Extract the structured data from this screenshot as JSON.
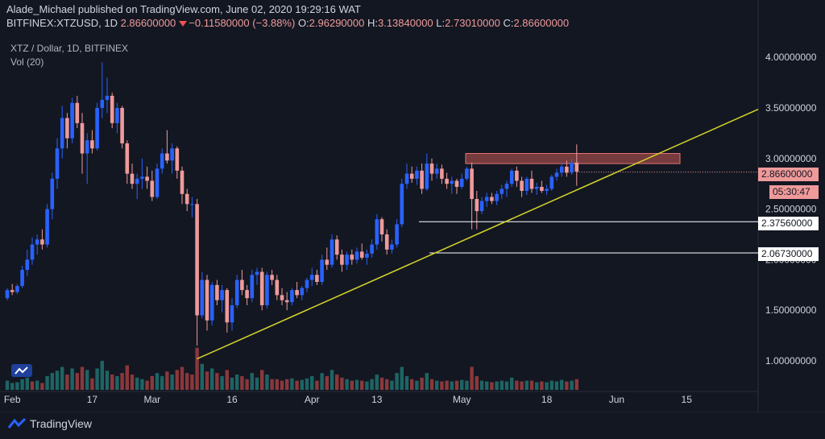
{
  "header": {
    "published_line": "Alade_Michael published on TradingView.com, June 02, 2020 19:29:16 WAT",
    "symbol": "BITFINEX:XTZUSD, 1D",
    "last": "2.86600000",
    "change": "−0.11580000 (−3.88%)",
    "o_label": "O:",
    "o": "2.96290000",
    "h_label": "H:",
    "h": "3.13840000",
    "l_label": "L:",
    "l": "2.73010000",
    "c_label": "C:",
    "c": "2.86600000"
  },
  "legend": {
    "title": "XTZ / Dollar, 1D, BITFINEX",
    "volume": "Vol (20)"
  },
  "price_axis": {
    "labels": [
      "4.00000000",
      "3.50000000",
      "3.00000000",
      "2.50000000",
      "2.00000000",
      "1.50000000",
      "1.00000000"
    ],
    "current_price": "2.86600000",
    "countdown": "05:30:47",
    "level_1": "2.37560000",
    "level_2": "2.06730000"
  },
  "time_axis": {
    "labels": [
      "Feb",
      "17",
      "Mar",
      "16",
      "Apr",
      "13",
      "May",
      "18",
      "Jun",
      "15"
    ]
  },
  "footer": {
    "brand": "TradingView"
  },
  "colors": {
    "background": "#131722",
    "up": "#2962ff",
    "down": "#ef9a9a",
    "trendline": "#d4d42a",
    "resistance_zone": "#b85450",
    "vol_up": "#26a69a",
    "vol_down": "#ef5350"
  },
  "chart_data": {
    "type": "candlestick",
    "title": "XTZ / Dollar, 1D, BITFINEX",
    "ylim": [
      0.75,
      4.2
    ],
    "y_ticks": [
      1.0,
      1.5,
      2.0,
      2.5,
      3.0,
      3.5,
      4.0
    ],
    "x_ticks": [
      "Feb",
      "17",
      "Mar",
      "16",
      "Apr",
      "13",
      "May",
      "18",
      "Jun",
      "15"
    ],
    "start_date": "2020-01-31",
    "candles": [
      [
        1.62,
        1.72,
        1.6,
        1.7
      ],
      [
        1.7,
        1.76,
        1.65,
        1.68
      ],
      [
        1.68,
        1.76,
        1.66,
        1.74
      ],
      [
        1.74,
        1.94,
        1.72,
        1.9
      ],
      [
        1.9,
        2.1,
        1.84,
        2.0
      ],
      [
        2.0,
        2.22,
        1.95,
        2.15
      ],
      [
        2.15,
        2.25,
        2.05,
        2.2
      ],
      [
        2.2,
        2.3,
        2.1,
        2.15
      ],
      [
        2.15,
        2.55,
        2.12,
        2.5
      ],
      [
        2.5,
        2.86,
        2.4,
        2.8
      ],
      [
        2.8,
        3.2,
        2.7,
        3.1
      ],
      [
        3.1,
        3.52,
        3.0,
        3.4
      ],
      [
        3.4,
        3.45,
        3.1,
        3.2
      ],
      [
        3.2,
        3.6,
        3.15,
        3.55
      ],
      [
        3.55,
        3.62,
        3.3,
        3.35
      ],
      [
        3.35,
        3.45,
        2.85,
        3.05
      ],
      [
        3.05,
        3.25,
        2.75,
        3.18
      ],
      [
        3.18,
        3.28,
        3.05,
        3.1
      ],
      [
        3.1,
        3.55,
        3.08,
        3.5
      ],
      [
        3.5,
        3.95,
        3.4,
        3.58
      ],
      [
        3.58,
        3.8,
        3.45,
        3.62
      ],
      [
        3.62,
        3.65,
        3.3,
        3.35
      ],
      [
        3.35,
        3.55,
        3.25,
        3.5
      ],
      [
        3.5,
        3.52,
        3.1,
        3.15
      ],
      [
        3.15,
        3.18,
        2.75,
        2.85
      ],
      [
        2.85,
        2.95,
        2.7,
        2.75
      ],
      [
        2.75,
        2.85,
        2.6,
        2.8
      ],
      [
        2.8,
        3.0,
        2.7,
        2.82
      ],
      [
        2.82,
        2.92,
        2.7,
        2.78
      ],
      [
        2.78,
        2.88,
        2.58,
        2.62
      ],
      [
        2.62,
        2.95,
        2.6,
        2.9
      ],
      [
        2.9,
        3.1,
        2.85,
        3.05
      ],
      [
        3.05,
        3.28,
        2.95,
        2.98
      ],
      [
        2.98,
        3.15,
        2.85,
        3.1
      ],
      [
        3.1,
        3.12,
        2.8,
        2.88
      ],
      [
        2.88,
        2.92,
        2.55,
        2.65
      ],
      [
        2.65,
        2.7,
        2.48,
        2.55
      ],
      [
        2.55,
        2.62,
        2.42,
        2.55
      ],
      [
        2.55,
        2.6,
        1.15,
        1.45
      ],
      [
        1.45,
        1.88,
        1.42,
        1.8
      ],
      [
        1.8,
        1.85,
        1.3,
        1.4
      ],
      [
        1.4,
        1.78,
        1.35,
        1.75
      ],
      [
        1.75,
        1.8,
        1.55,
        1.6
      ],
      [
        1.6,
        1.75,
        1.48,
        1.7
      ],
      [
        1.7,
        1.72,
        1.28,
        1.38
      ],
      [
        1.38,
        1.62,
        1.3,
        1.55
      ],
      [
        1.55,
        1.85,
        1.52,
        1.8
      ],
      [
        1.8,
        1.9,
        1.65,
        1.7
      ],
      [
        1.7,
        1.75,
        1.55,
        1.62
      ],
      [
        1.62,
        1.9,
        1.58,
        1.85
      ],
      [
        1.85,
        1.92,
        1.75,
        1.88
      ],
      [
        1.88,
        1.92,
        1.5,
        1.55
      ],
      [
        1.55,
        1.88,
        1.52,
        1.85
      ],
      [
        1.85,
        1.9,
        1.75,
        1.8
      ],
      [
        1.8,
        1.85,
        1.6,
        1.65
      ],
      [
        1.65,
        1.72,
        1.55,
        1.6
      ],
      [
        1.6,
        1.68,
        1.5,
        1.58
      ],
      [
        1.58,
        1.72,
        1.55,
        1.7
      ],
      [
        1.7,
        1.78,
        1.62,
        1.65
      ],
      [
        1.65,
        1.74,
        1.6,
        1.72
      ],
      [
        1.72,
        1.82,
        1.68,
        1.8
      ],
      [
        1.8,
        1.92,
        1.74,
        1.85
      ],
      [
        1.85,
        1.9,
        1.75,
        1.78
      ],
      [
        1.78,
        2.05,
        1.75,
        2.0
      ],
      [
        2.0,
        2.12,
        1.9,
        1.95
      ],
      [
        1.95,
        2.25,
        1.92,
        2.2
      ],
      [
        2.2,
        2.24,
        2.0,
        2.05
      ],
      [
        2.05,
        2.1,
        1.88,
        1.95
      ],
      [
        1.95,
        2.08,
        1.9,
        2.05
      ],
      [
        2.05,
        2.1,
        1.95,
        2.0
      ],
      [
        2.0,
        2.12,
        1.96,
        2.08
      ],
      [
        2.08,
        2.16,
        2.0,
        2.02
      ],
      [
        2.02,
        2.1,
        1.95,
        2.06
      ],
      [
        2.06,
        2.2,
        2.02,
        2.15
      ],
      [
        2.15,
        2.45,
        2.1,
        2.4
      ],
      [
        2.4,
        2.42,
        2.18,
        2.25
      ],
      [
        2.25,
        2.3,
        2.05,
        2.1
      ],
      [
        2.1,
        2.2,
        2.06,
        2.15
      ],
      [
        2.15,
        2.4,
        2.12,
        2.35
      ],
      [
        2.35,
        2.8,
        2.32,
        2.75
      ],
      [
        2.75,
        2.95,
        2.7,
        2.85
      ],
      [
        2.85,
        2.92,
        2.76,
        2.8
      ],
      [
        2.8,
        2.92,
        2.74,
        2.88
      ],
      [
        2.88,
        2.95,
        2.65,
        2.7
      ],
      [
        2.7,
        3.05,
        2.68,
        2.95
      ],
      [
        2.95,
        3.0,
        2.78,
        2.85
      ],
      [
        2.85,
        2.95,
        2.8,
        2.9
      ],
      [
        2.9,
        2.94,
        2.75,
        2.8
      ],
      [
        2.8,
        2.86,
        2.7,
        2.75
      ],
      [
        2.75,
        2.82,
        2.65,
        2.78
      ],
      [
        2.78,
        2.8,
        2.65,
        2.72
      ],
      [
        2.72,
        2.85,
        2.7,
        2.8
      ],
      [
        2.8,
        2.92,
        2.78,
        2.9
      ],
      [
        2.9,
        2.96,
        2.3,
        2.6
      ],
      [
        2.6,
        2.68,
        2.3,
        2.48
      ],
      [
        2.48,
        2.62,
        2.45,
        2.58
      ],
      [
        2.58,
        2.66,
        2.52,
        2.62
      ],
      [
        2.62,
        2.66,
        2.55,
        2.58
      ],
      [
        2.58,
        2.68,
        2.54,
        2.65
      ],
      [
        2.65,
        2.74,
        2.6,
        2.7
      ],
      [
        2.7,
        2.78,
        2.62,
        2.75
      ],
      [
        2.75,
        2.9,
        2.72,
        2.88
      ],
      [
        2.88,
        2.92,
        2.72,
        2.78
      ],
      [
        2.78,
        2.82,
        2.62,
        2.68
      ],
      [
        2.68,
        2.82,
        2.64,
        2.8
      ],
      [
        2.8,
        2.88,
        2.66,
        2.7
      ],
      [
        2.7,
        2.76,
        2.64,
        2.72
      ],
      [
        2.72,
        2.78,
        2.66,
        2.68
      ],
      [
        2.68,
        2.74,
        2.64,
        2.7
      ],
      [
        2.7,
        2.84,
        2.68,
        2.82
      ],
      [
        2.82,
        2.9,
        2.78,
        2.86
      ],
      [
        2.86,
        2.96,
        2.82,
        2.92
      ],
      [
        2.92,
        2.98,
        2.82,
        2.86
      ],
      [
        2.86,
        3.0,
        2.84,
        2.96
      ],
      [
        2.96,
        3.14,
        2.73,
        2.87
      ]
    ],
    "volume": [
      [
        12,
        1
      ],
      [
        9,
        1
      ],
      [
        10,
        1
      ],
      [
        14,
        1
      ],
      [
        16,
        1
      ],
      [
        11,
        0
      ],
      [
        12,
        1
      ],
      [
        9,
        0
      ],
      [
        18,
        1
      ],
      [
        22,
        1
      ],
      [
        25,
        1
      ],
      [
        30,
        1
      ],
      [
        20,
        0
      ],
      [
        28,
        1
      ],
      [
        22,
        0
      ],
      [
        30,
        0
      ],
      [
        26,
        1
      ],
      [
        15,
        0
      ],
      [
        28,
        1
      ],
      [
        38,
        1
      ],
      [
        25,
        1
      ],
      [
        20,
        0
      ],
      [
        18,
        1
      ],
      [
        22,
        0
      ],
      [
        32,
        0
      ],
      [
        20,
        0
      ],
      [
        16,
        1
      ],
      [
        14,
        1
      ],
      [
        12,
        0
      ],
      [
        18,
        0
      ],
      [
        22,
        1
      ],
      [
        18,
        1
      ],
      [
        24,
        0
      ],
      [
        20,
        1
      ],
      [
        26,
        0
      ],
      [
        30,
        0
      ],
      [
        22,
        0
      ],
      [
        20,
        0
      ],
      [
        55,
        0
      ],
      [
        34,
        1
      ],
      [
        24,
        0
      ],
      [
        28,
        1
      ],
      [
        22,
        0
      ],
      [
        18,
        1
      ],
      [
        26,
        0
      ],
      [
        16,
        1
      ],
      [
        20,
        1
      ],
      [
        18,
        0
      ],
      [
        14,
        0
      ],
      [
        22,
        1
      ],
      [
        16,
        1
      ],
      [
        26,
        0
      ],
      [
        20,
        1
      ],
      [
        14,
        0
      ],
      [
        14,
        0
      ],
      [
        12,
        0
      ],
      [
        14,
        0
      ],
      [
        15,
        1
      ],
      [
        12,
        0
      ],
      [
        13,
        1
      ],
      [
        15,
        1
      ],
      [
        18,
        1
      ],
      [
        12,
        0
      ],
      [
        22,
        1
      ],
      [
        18,
        0
      ],
      [
        26,
        1
      ],
      [
        20,
        0
      ],
      [
        16,
        0
      ],
      [
        14,
        1
      ],
      [
        12,
        0
      ],
      [
        13,
        1
      ],
      [
        12,
        0
      ],
      [
        11,
        1
      ],
      [
        14,
        1
      ],
      [
        20,
        1
      ],
      [
        16,
        0
      ],
      [
        14,
        0
      ],
      [
        12,
        1
      ],
      [
        22,
        1
      ],
      [
        30,
        1
      ],
      [
        18,
        1
      ],
      [
        14,
        0
      ],
      [
        12,
        1
      ],
      [
        16,
        0
      ],
      [
        22,
        1
      ],
      [
        14,
        0
      ],
      [
        12,
        1
      ],
      [
        11,
        0
      ],
      [
        12,
        0
      ],
      [
        11,
        1
      ],
      [
        12,
        0
      ],
      [
        13,
        1
      ],
      [
        12,
        1
      ],
      [
        30,
        0
      ],
      [
        18,
        0
      ],
      [
        12,
        1
      ],
      [
        11,
        1
      ],
      [
        10,
        0
      ],
      [
        11,
        1
      ],
      [
        12,
        1
      ],
      [
        11,
        1
      ],
      [
        16,
        1
      ],
      [
        12,
        0
      ],
      [
        11,
        0
      ],
      [
        12,
        1
      ],
      [
        12,
        0
      ],
      [
        10,
        1
      ],
      [
        11,
        0
      ],
      [
        10,
        1
      ],
      [
        12,
        1
      ],
      [
        11,
        1
      ],
      [
        13,
        1
      ],
      [
        11,
        0
      ],
      [
        12,
        1
      ],
      [
        14,
        0
      ]
    ],
    "horizontal_levels": [
      2.3756,
      2.0673
    ],
    "resistance_zone": [
      2.95,
      3.05
    ],
    "trendline": [
      [
        38,
        1.02
      ],
      [
        135,
        3.15
      ]
    ]
  }
}
